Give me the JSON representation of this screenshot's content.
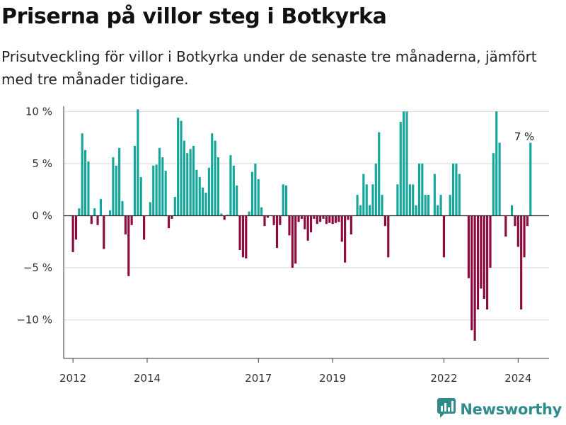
{
  "header": {
    "title": "Priserna på villor steg i Botkyrka",
    "subtitle": "Prisutveckling för villor i Botkyrka under de senaste tre månaderna, jämfört med tre månader tidigare."
  },
  "brand": {
    "name": "Newsworthy",
    "icon": "newsworthy-logo-icon",
    "color": "#2e8c8a"
  },
  "colors": {
    "positive": "#13a69a",
    "negative": "#8c0a3e",
    "grid": "#d9d9d9",
    "zero_line": "#333333"
  },
  "chart_data": {
    "type": "bar",
    "x_start": "2011-10",
    "x_end": "2024-11",
    "x_ticks": [
      {
        "date": "2012-01",
        "label": "2012"
      },
      {
        "date": "2014-01",
        "label": "2014"
      },
      {
        "date": "2017-01",
        "label": "2017"
      },
      {
        "date": "2019-01",
        "label": "2019"
      },
      {
        "date": "2022-01",
        "label": "2022"
      },
      {
        "date": "2024-01",
        "label": "2024"
      }
    ],
    "y_ticks": [
      {
        "value": 10,
        "label": "10 %"
      },
      {
        "value": 5,
        "label": "5 %"
      },
      {
        "value": 0,
        "label": "0 %"
      },
      {
        "value": -5,
        "label": "−5 %"
      },
      {
        "value": -10,
        "label": "−10 %"
      }
    ],
    "ylim": [
      -13.7,
      10.5
    ],
    "ylabel": "",
    "xlabel": "",
    "grid": true,
    "annotation": {
      "text": "7 %",
      "date": "2024-03"
    },
    "points": [
      [
        "2012-01",
        -3.5
      ],
      [
        "2012-02",
        -2.3
      ],
      [
        "2012-03",
        0.7
      ],
      [
        "2012-04",
        7.9
      ],
      [
        "2012-05",
        6.3
      ],
      [
        "2012-06",
        5.2
      ],
      [
        "2012-07",
        -0.8
      ],
      [
        "2012-08",
        0.7
      ],
      [
        "2012-09",
        -0.9
      ],
      [
        "2012-10",
        1.6
      ],
      [
        "2012-11",
        -3.2
      ],
      [
        "2012-12",
        0.0
      ],
      [
        "2013-01",
        0.5
      ],
      [
        "2013-02",
        5.6
      ],
      [
        "2013-03",
        4.8
      ],
      [
        "2013-04",
        6.5
      ],
      [
        "2013-05",
        1.4
      ],
      [
        "2013-06",
        -1.8
      ],
      [
        "2013-07",
        -5.8
      ],
      [
        "2013-08",
        -0.9
      ],
      [
        "2013-09",
        6.7
      ],
      [
        "2013-10",
        10.2
      ],
      [
        "2013-11",
        3.7
      ],
      [
        "2013-12",
        -2.3
      ],
      [
        "2014-01",
        0.0
      ],
      [
        "2014-02",
        1.3
      ],
      [
        "2014-03",
        4.8
      ],
      [
        "2014-04",
        4.9
      ],
      [
        "2014-05",
        6.5
      ],
      [
        "2014-06",
        5.6
      ],
      [
        "2014-07",
        4.3
      ],
      [
        "2014-08",
        -1.2
      ],
      [
        "2014-09",
        -0.3
      ],
      [
        "2014-10",
        1.8
      ],
      [
        "2014-11",
        9.4
      ],
      [
        "2014-12",
        9.1
      ],
      [
        "2015-01",
        7.2
      ],
      [
        "2015-02",
        6.0
      ],
      [
        "2015-03",
        6.4
      ],
      [
        "2015-04",
        6.7
      ],
      [
        "2015-05",
        4.4
      ],
      [
        "2015-06",
        3.7
      ],
      [
        "2015-07",
        2.7
      ],
      [
        "2015-08",
        2.2
      ],
      [
        "2015-09",
        4.6
      ],
      [
        "2015-10",
        7.9
      ],
      [
        "2015-11",
        7.2
      ],
      [
        "2015-12",
        5.6
      ],
      [
        "2016-01",
        0.2
      ],
      [
        "2016-02",
        -0.4
      ],
      [
        "2016-03",
        0.1
      ],
      [
        "2016-04",
        5.8
      ],
      [
        "2016-05",
        4.8
      ],
      [
        "2016-06",
        2.9
      ],
      [
        "2016-07",
        -3.3
      ],
      [
        "2016-08",
        -4.0
      ],
      [
        "2016-09",
        -4.1
      ],
      [
        "2016-10",
        0.4
      ],
      [
        "2016-11",
        4.2
      ],
      [
        "2016-12",
        5.0
      ],
      [
        "2017-01",
        3.5
      ],
      [
        "2017-02",
        0.8
      ],
      [
        "2017-03",
        -1.0
      ],
      [
        "2017-04",
        -0.2
      ],
      [
        "2017-05",
        0.0
      ],
      [
        "2017-06",
        -0.9
      ],
      [
        "2017-07",
        -3.1
      ],
      [
        "2017-08",
        -0.9
      ],
      [
        "2017-09",
        3.0
      ],
      [
        "2017-10",
        2.9
      ],
      [
        "2017-11",
        -1.9
      ],
      [
        "2017-12",
        -5.0
      ],
      [
        "2018-01",
        -4.6
      ],
      [
        "2018-02",
        -0.6
      ],
      [
        "2018-03",
        -0.3
      ],
      [
        "2018-04",
        -1.3
      ],
      [
        "2018-05",
        -2.4
      ],
      [
        "2018-06",
        -1.6
      ],
      [
        "2018-07",
        -0.3
      ],
      [
        "2018-08",
        -0.8
      ],
      [
        "2018-09",
        -0.6
      ],
      [
        "2018-10",
        -0.3
      ],
      [
        "2018-11",
        -0.8
      ],
      [
        "2018-12",
        -0.7
      ],
      [
        "2019-01",
        -0.8
      ],
      [
        "2019-02",
        -0.7
      ],
      [
        "2019-03",
        -0.6
      ],
      [
        "2019-04",
        -2.5
      ],
      [
        "2019-05",
        -4.5
      ],
      [
        "2019-06",
        -0.4
      ],
      [
        "2019-07",
        -1.8
      ],
      [
        "2019-08",
        0.0
      ],
      [
        "2019-09",
        2.0
      ],
      [
        "2019-10",
        1.0
      ],
      [
        "2019-11",
        4.0
      ],
      [
        "2019-12",
        3.0
      ],
      [
        "2020-01",
        1.0
      ],
      [
        "2020-02",
        3.0
      ],
      [
        "2020-03",
        5.0
      ],
      [
        "2020-04",
        8.0
      ],
      [
        "2020-05",
        2.0
      ],
      [
        "2020-06",
        -1.0
      ],
      [
        "2020-07",
        -4.0
      ],
      [
        "2020-08",
        0.0
      ],
      [
        "2020-09",
        0.0
      ],
      [
        "2020-10",
        3.0
      ],
      [
        "2020-11",
        9.0
      ],
      [
        "2020-12",
        10.0
      ],
      [
        "2021-01",
        10.0
      ],
      [
        "2021-02",
        3.0
      ],
      [
        "2021-03",
        3.0
      ],
      [
        "2021-04",
        1.0
      ],
      [
        "2021-05",
        5.0
      ],
      [
        "2021-06",
        5.0
      ],
      [
        "2021-07",
        2.0
      ],
      [
        "2021-08",
        2.0
      ],
      [
        "2021-09",
        0.0
      ],
      [
        "2021-10",
        4.0
      ],
      [
        "2021-11",
        1.0
      ],
      [
        "2021-12",
        2.0
      ],
      [
        "2022-01",
        -4.0
      ],
      [
        "2022-02",
        0.0
      ],
      [
        "2022-03",
        2.0
      ],
      [
        "2022-04",
        5.0
      ],
      [
        "2022-05",
        5.0
      ],
      [
        "2022-06",
        4.0
      ],
      [
        "2022-07",
        0.0
      ],
      [
        "2022-08",
        0.0
      ],
      [
        "2022-09",
        -6.0
      ],
      [
        "2022-10",
        -11.0
      ],
      [
        "2022-11",
        -12.0
      ],
      [
        "2022-12",
        -9.0
      ],
      [
        "2023-01",
        -7.0
      ],
      [
        "2023-02",
        -8.0
      ],
      [
        "2023-03",
        -9.0
      ],
      [
        "2023-04",
        -5.0
      ],
      [
        "2023-05",
        6.0
      ],
      [
        "2023-06",
        10.0
      ],
      [
        "2023-07",
        7.0
      ],
      [
        "2023-08",
        0.0
      ],
      [
        "2023-09",
        -2.0
      ],
      [
        "2023-10",
        0.0
      ],
      [
        "2023-11",
        1.0
      ],
      [
        "2023-12",
        -1.0
      ],
      [
        "2024-01",
        -3.0
      ],
      [
        "2024-02",
        -9.0
      ],
      [
        "2024-03",
        -4.0
      ],
      [
        "2024-04",
        -1.0
      ],
      [
        "2024-05",
        7.0
      ]
    ]
  }
}
